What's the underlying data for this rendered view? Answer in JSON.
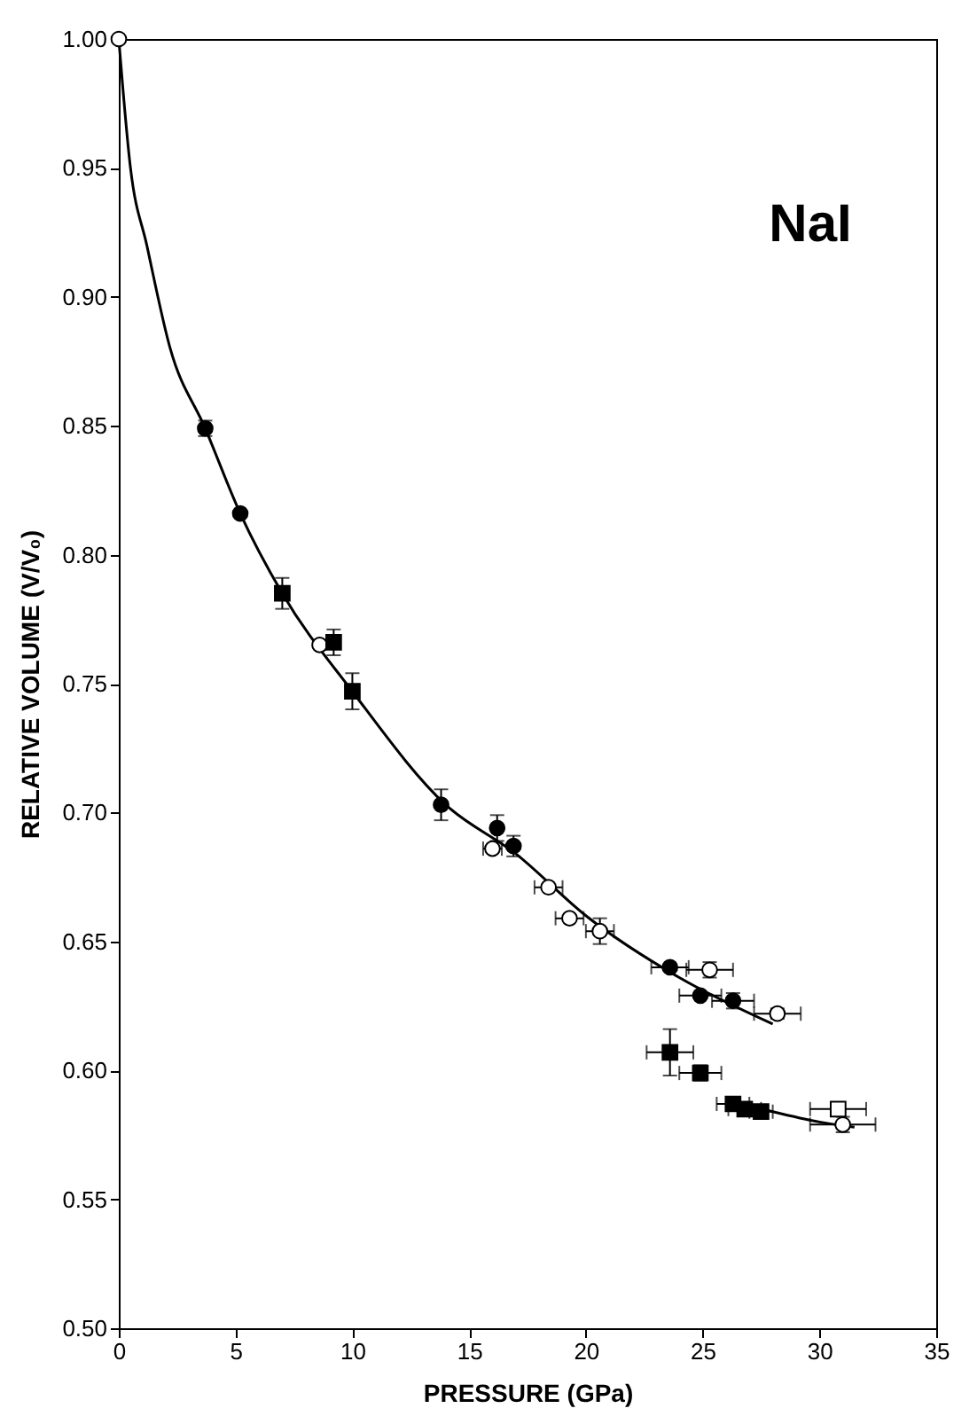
{
  "chart_data": {
    "type": "scatter",
    "xlabel": "PRESSURE (GPa)",
    "ylabel": "RELATIVE VOLUME (V/V₀)",
    "annotations": [
      "NaI"
    ],
    "xlim": [
      0,
      35
    ],
    "xticks": [
      0,
      5,
      10,
      15,
      20,
      25,
      30,
      35
    ],
    "ylim": [
      0.5,
      1.0
    ],
    "yticks": [
      {
        "value": 0.5,
        "label": "0.50"
      },
      0.55,
      {
        "value": 0.6,
        "label": "0.60"
      },
      0.65,
      {
        "value": 0.7,
        "label": "0.70"
      },
      0.75,
      {
        "value": 0.8,
        "label": "0.80"
      },
      0.85,
      {
        "value": 0.9,
        "label": "0.90"
      },
      0.95,
      {
        "value": 1.0,
        "label": "1.00"
      }
    ],
    "grid": false,
    "series": [
      {
        "type": "line",
        "color": "#000000",
        "marker": "none",
        "line_style": "solid",
        "x": [
          0,
          0.5,
          1.2,
          2.2,
          3.7,
          5.2,
          7.0,
          10.0,
          14.0,
          17.0,
          20.0,
          24.0,
          28.0
        ],
        "values": [
          1.0,
          0.95,
          0.92,
          0.88,
          0.849,
          0.816,
          0.785,
          0.747,
          0.703,
          0.684,
          0.66,
          0.636,
          0.618
        ]
      },
      {
        "type": "line",
        "color": "#000000",
        "marker": "none",
        "line_style": "solid",
        "x": [
          26.3,
          28.0,
          30.0,
          31.5
        ],
        "values": [
          0.588,
          0.584,
          0.58,
          0.578
        ]
      },
      {
        "color": "#000000",
        "marker": "circle",
        "x": [
          3.7,
          5.2,
          13.8,
          16.2,
          16.9,
          23.6,
          24.9,
          26.3
        ],
        "values": [
          0.849,
          0.816,
          0.703,
          0.694,
          0.687,
          0.64,
          0.629,
          0.627
        ],
        "errors": [
          0.003,
          null,
          0.006,
          0.005,
          0.004,
          null,
          null,
          0.003
        ],
        "xerrors": [
          null,
          null,
          null,
          null,
          null,
          0.8,
          0.9,
          0.9
        ]
      },
      {
        "color": "#ffffff",
        "marker": "circle",
        "x": [
          0,
          8.6,
          16.0,
          18.4,
          19.3,
          20.6,
          25.3,
          28.2,
          31.0
        ],
        "values": [
          1.0,
          0.765,
          0.686,
          0.671,
          0.659,
          0.654,
          0.639,
          0.622,
          0.579
        ],
        "errors": [
          null,
          null,
          null,
          null,
          null,
          0.005,
          0.003,
          0.002,
          0.003
        ],
        "xerrors": [
          null,
          null,
          0.4,
          0.6,
          0.6,
          0.6,
          1.0,
          1.0,
          1.4
        ]
      },
      {
        "color": "#000000",
        "marker": "square",
        "x": [
          7.0,
          9.2,
          10.0,
          23.6,
          24.9,
          26.3,
          26.8,
          27.5
        ],
        "values": [
          0.785,
          0.766,
          0.747,
          0.607,
          0.599,
          0.587,
          0.585,
          0.584
        ],
        "errors": [
          0.006,
          0.005,
          0.007,
          0.009,
          0.003,
          null,
          null,
          null
        ],
        "xerrors": [
          null,
          null,
          null,
          1.0,
          0.9,
          0.7,
          0.7,
          0.5
        ]
      },
      {
        "color": "#ffffff",
        "marker": "square",
        "x": [
          30.8
        ],
        "values": [
          0.585
        ],
        "errors": [
          null
        ],
        "xerrors": [
          1.2
        ]
      }
    ]
  }
}
